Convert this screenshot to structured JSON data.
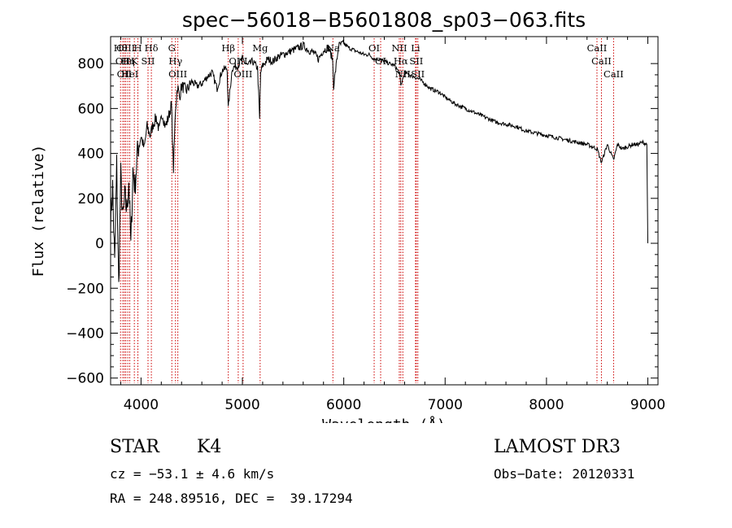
{
  "chart_data": {
    "type": "line",
    "title": "spec−56018−B5601808_sp03−063.fits",
    "xlabel": "Wavelength (Å)",
    "ylabel": "Flux (relative)",
    "xlim": [
      3700,
      9100
    ],
    "ylim": [
      -630,
      920
    ],
    "xticks": [
      4000,
      5000,
      6000,
      7000,
      8000,
      9000
    ],
    "yticks": [
      -600,
      -400,
      -200,
      0,
      200,
      400,
      600,
      800
    ],
    "xtick_labels": [
      "4000",
      "5000",
      "6000",
      "7000",
      "8000",
      "9000"
    ],
    "ytick_labels": [
      "−600",
      "−400",
      "−200",
      "0",
      "200",
      "400",
      "600",
      "800"
    ],
    "series": [
      {
        "name": "flux",
        "x": [
          3700,
          3720,
          3740,
          3760,
          3780,
          3800,
          3820,
          3840,
          3860,
          3880,
          3900,
          3920,
          3940,
          3960,
          3980,
          4000,
          4030,
          4060,
          4090,
          4120,
          4150,
          4180,
          4210,
          4240,
          4270,
          4300,
          4320,
          4340,
          4360,
          4380,
          4400,
          4450,
          4500,
          4550,
          4600,
          4650,
          4700,
          4750,
          4800,
          4850,
          4860,
          4900,
          4950,
          5000,
          5050,
          5100,
          5150,
          5170,
          5180,
          5200,
          5250,
          5300,
          5350,
          5400,
          5450,
          5500,
          5550,
          5600,
          5650,
          5700,
          5750,
          5800,
          5850,
          5890,
          5900,
          5950,
          6000,
          6050,
          6100,
          6150,
          6200,
          6250,
          6300,
          6350,
          6400,
          6450,
          6500,
          6550,
          6563,
          6600,
          6650,
          6700,
          6750,
          6800,
          6850,
          6900,
          6950,
          7000,
          7100,
          7200,
          7300,
          7400,
          7500,
          7600,
          7700,
          7800,
          7900,
          8000,
          8100,
          8200,
          8300,
          8400,
          8500,
          8542,
          8600,
          8662,
          8700,
          8750,
          8800,
          8850,
          8900,
          8950,
          8990,
          9000
        ],
        "values": [
          100,
          250,
          -100,
          350,
          -200,
          300,
          100,
          200,
          150,
          280,
          -20,
          330,
          250,
          380,
          450,
          480,
          420,
          520,
          480,
          530,
          560,
          500,
          580,
          520,
          560,
          620,
          330,
          600,
          700,
          650,
          700,
          680,
          720,
          700,
          710,
          740,
          760,
          690,
          770,
          780,
          600,
          780,
          790,
          820,
          790,
          810,
          780,
          550,
          760,
          790,
          820,
          810,
          830,
          840,
          850,
          860,
          870,
          880,
          860,
          850,
          820,
          860,
          870,
          820,
          700,
          880,
          890,
          870,
          860,
          850,
          840,
          840,
          820,
          820,
          810,
          800,
          790,
          760,
          700,
          760,
          750,
          740,
          730,
          710,
          690,
          680,
          670,
          650,
          620,
          600,
          580,
          560,
          540,
          530,
          520,
          500,
          490,
          480,
          470,
          460,
          450,
          440,
          420,
          360,
          440,
          370,
          440,
          420,
          430,
          440,
          440,
          450,
          440,
          0
        ]
      }
    ],
    "line_markers": [
      {
        "wavelength": 3798,
        "label": "Hθ"
      },
      {
        "wavelength": 3820,
        "label": "OII"
      },
      {
        "wavelength": 3835,
        "label": "OII"
      },
      {
        "wavelength": 3850,
        "label": "OIII"
      },
      {
        "wavelength": 3870,
        "label": "Hη"
      },
      {
        "wavelength": 3889,
        "label": "HeI"
      },
      {
        "wavelength": 3934,
        "label": "K"
      },
      {
        "wavelength": 3969,
        "label": "H"
      },
      {
        "wavelength": 4069,
        "label": "SII"
      },
      {
        "wavelength": 4102,
        "label": "Hδ"
      },
      {
        "wavelength": 4304,
        "label": "G"
      },
      {
        "wavelength": 4340,
        "label": "Hγ"
      },
      {
        "wavelength": 4363,
        "label": "OIII"
      },
      {
        "wavelength": 4861,
        "label": "Hβ"
      },
      {
        "wavelength": 4959,
        "label": "OIII"
      },
      {
        "wavelength": 5007,
        "label": "OIII"
      },
      {
        "wavelength": 5175,
        "label": "Mg"
      },
      {
        "wavelength": 5893,
        "label": "Na"
      },
      {
        "wavelength": 6300,
        "label": "OI"
      },
      {
        "wavelength": 6364,
        "label": "OI"
      },
      {
        "wavelength": 6548,
        "label": "NII"
      },
      {
        "wavelength": 6563,
        "label": "Hα"
      },
      {
        "wavelength": 6583,
        "label": "NII"
      },
      {
        "wavelength": 6708,
        "label": "Li"
      },
      {
        "wavelength": 6716,
        "label": "SII"
      },
      {
        "wavelength": 6731,
        "label": "SII"
      },
      {
        "wavelength": 8498,
        "label": "CaII"
      },
      {
        "wavelength": 8542,
        "label": "CaII"
      },
      {
        "wavelength": 8662,
        "label": "CaII"
      }
    ]
  },
  "info": {
    "class": "STAR",
    "subclass": "K4",
    "survey": "LAMOST DR3",
    "cz": "cz = −53.1 ± 4.6 km/s",
    "obs_date": "Obs−Date: 20120331",
    "ra_dec": "RA = 248.89516, DEC =  39.17294"
  }
}
